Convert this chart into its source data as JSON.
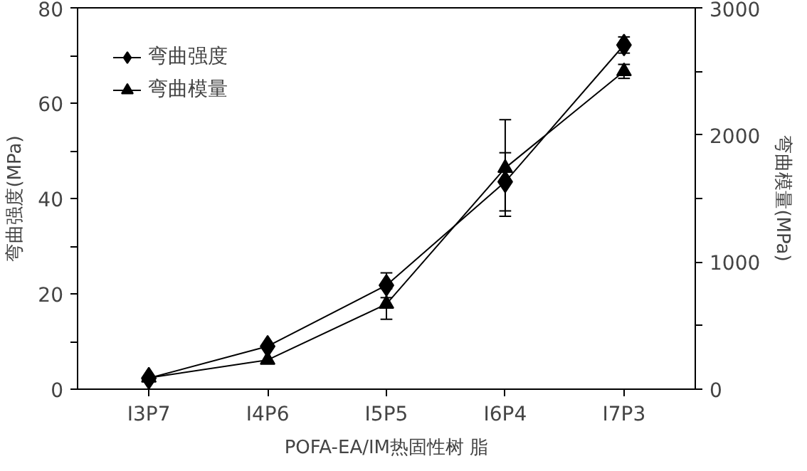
{
  "chart_data": {
    "type": "line",
    "xlabel": "POFA-EA/IM热固性树 脂",
    "ylabel": "弯曲强度(MPa)",
    "y2label": "弯曲模量(MPa)",
    "categories": [
      "I3P7",
      "I4P6",
      "I5P5",
      "I6P4",
      "I7P3"
    ],
    "series": [
      {
        "name": "弯曲强度",
        "color": "#000000",
        "marker": "diamond",
        "values": [
          2.3,
          9.0,
          21.8,
          43.5,
          72.2
        ],
        "errors": [
          null,
          null,
          2.6,
          6.1,
          1.7
        ]
      },
      {
        "name": "弯曲模量",
        "color": "#000000",
        "marker": "triangle",
        "axis": "y2",
        "values": [
          90,
          230,
          670,
          1740,
          2500
        ],
        "errors": [
          null,
          null,
          120,
          380,
          55
        ]
      }
    ],
    "ylim": [
      0,
      80
    ],
    "yticks": [
      0,
      {
        "value": 10,
        "label": null
      },
      20,
      {
        "value": 30,
        "label": null
      },
      40,
      {
        "value": 50,
        "label": null
      },
      60,
      {
        "value": 70,
        "label": null
      },
      80
    ],
    "y2lim": [
      0,
      3000
    ],
    "y2ticks": [
      0,
      {
        "value": 500,
        "label": null
      },
      1000,
      {
        "value": 1500,
        "label": null
      },
      2000,
      {
        "value": 2500,
        "label": null
      },
      3000
    ],
    "grid": false,
    "legend": "top left",
    "line_style": "solid"
  }
}
